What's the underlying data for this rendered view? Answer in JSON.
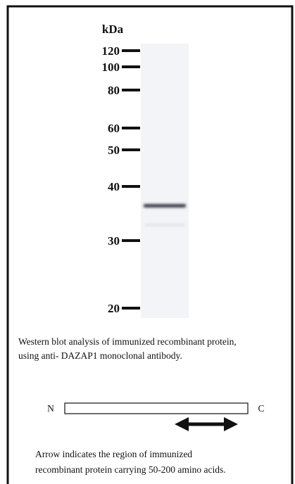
{
  "figure": {
    "unit": "kDa",
    "markers": [
      "120",
      "100",
      "80",
      "60",
      "50",
      "40",
      "30",
      "20"
    ],
    "caption": [
      "Western blot analysis of immunized recombinant protein,",
      "using anti- DAZAP1 monoclonal antibody."
    ],
    "diagram": {
      "n_label": "N",
      "c_label": "C"
    },
    "note": [
      "Arrow indicates the region of immunized",
      "recombinant protein carrying 50-200 amino acids."
    ]
  }
}
